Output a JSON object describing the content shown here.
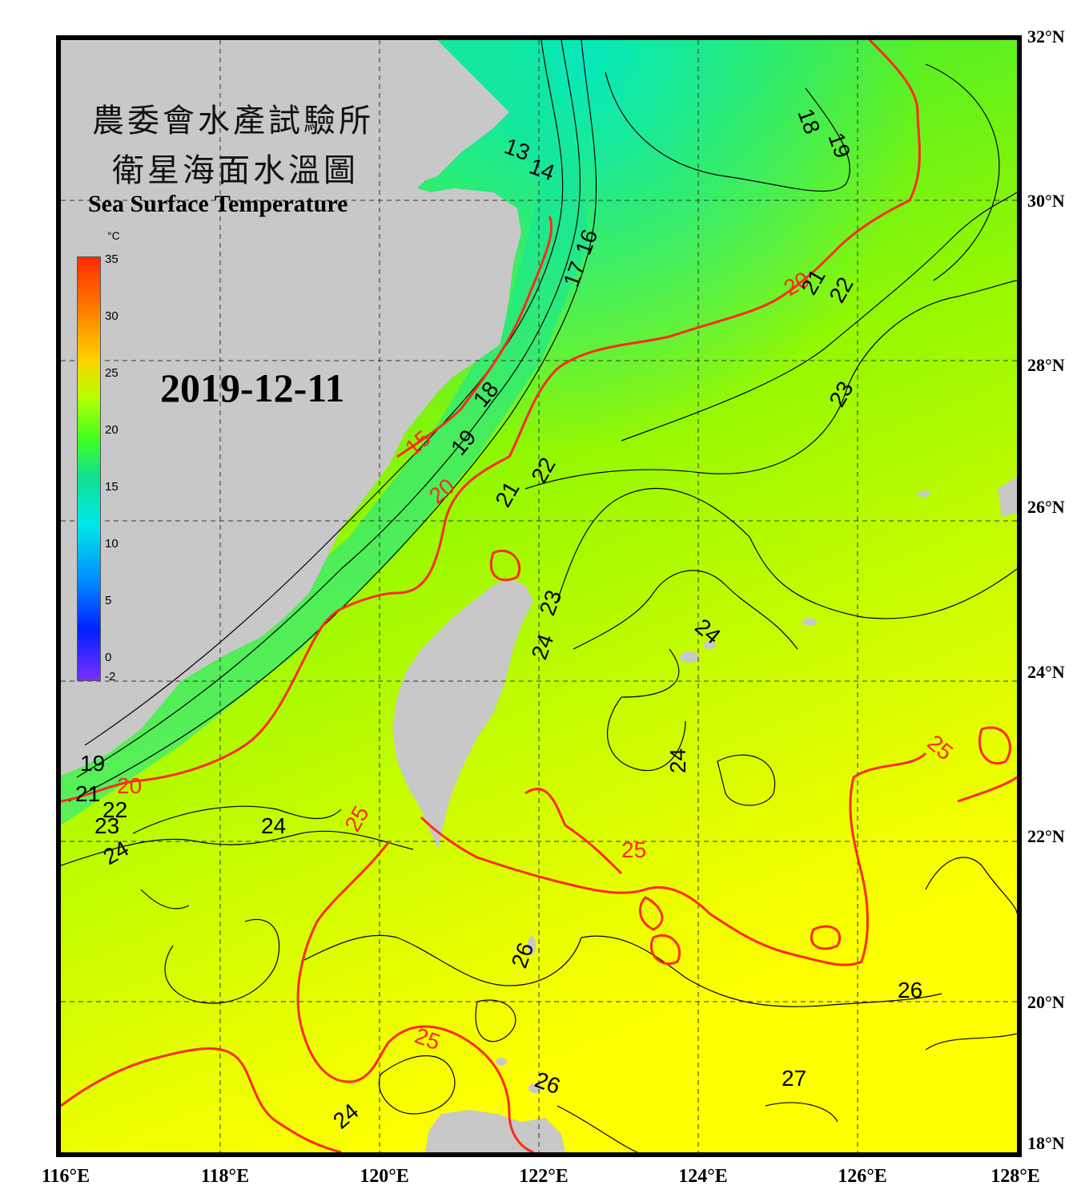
{
  "title": {
    "line1": "農委會水產試驗所",
    "line2": "衛星海面水溫圖",
    "english": "Sea Surface Temperature"
  },
  "date": "2019-12-11",
  "colorbar": {
    "unit": "°C",
    "ticks": [
      "35",
      "30",
      "25",
      "20",
      "15",
      "10",
      "5",
      "0",
      "-2"
    ],
    "range": [
      -2,
      35
    ]
  },
  "axes": {
    "lat_labels": [
      "32°N",
      "30°N",
      "28°N",
      "26°N",
      "24°N",
      "22°N",
      "20°N",
      "18°N"
    ],
    "lon_labels": [
      "116°E",
      "118°E",
      "120°E",
      "122°E",
      "124°E",
      "126°E",
      "128°E"
    ],
    "lat_range": [
      18,
      32
    ],
    "lon_range": [
      116,
      128
    ]
  },
  "colors": {
    "land": "#c8c8c8",
    "isotherm_major": "#ff2a1a",
    "isotherm_minor": "#000000",
    "warm_water": "#ffff00",
    "mid_water": "#9cff00",
    "cool_water": "#16e690",
    "cold_water": "#00e8e0"
  },
  "isotherm_labels": {
    "red": [
      "20",
      "15",
      "20",
      "20",
      "25",
      "25",
      "25",
      "25"
    ],
    "black": [
      "13",
      "14",
      "18",
      "19",
      "21",
      "22",
      "17",
      "16",
      "18",
      "19",
      "21",
      "22",
      "23",
      "22",
      "23",
      "24",
      "24",
      "24",
      "24",
      "23",
      "21",
      "19",
      "24",
      "26",
      "26",
      "26",
      "27",
      "24"
    ]
  }
}
